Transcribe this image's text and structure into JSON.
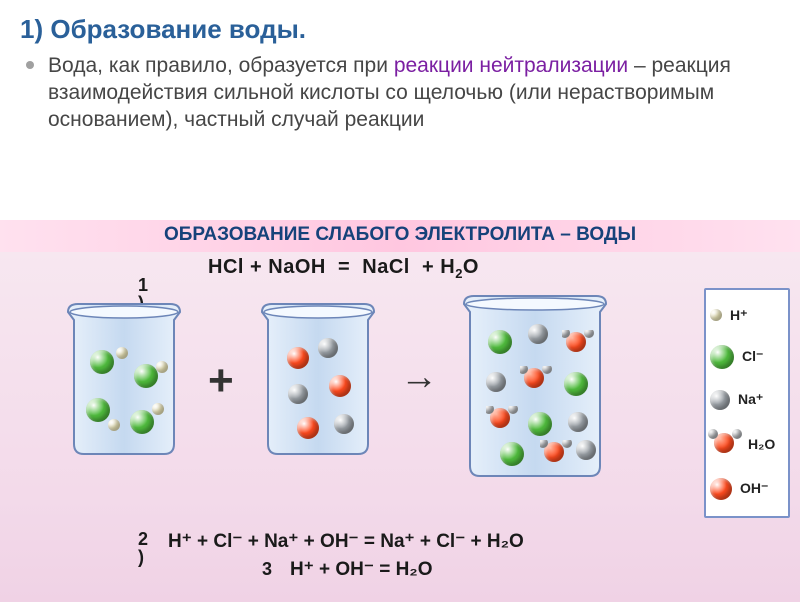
{
  "colors": {
    "title": "#2a6099",
    "body_text": "#464646",
    "highlight": "#7b1fa2",
    "bullet": "#a0a0a0",
    "band_title_bg": "#ffc7e0",
    "band_title_color": "#16427a",
    "band_body_bg": "#f3daea",
    "beaker_glass": "#c5d9f0",
    "beaker_stroke": "#6d86b8",
    "legend_border": "#7b92c9",
    "ion_H": "#f6f0c1",
    "ion_Cl": "#4fbb3d",
    "ion_Na": "#9aa0a6",
    "ion_OH": "#ff4b1f",
    "water_body": "#ff4b1f",
    "water_h": "#b9bcc0"
  },
  "title": "1) Образование воды.",
  "body": {
    "pre": "Вода, как правило, образуется при ",
    "hl": "реакции нейтрализации",
    "post": " – реакция взаимодействия сильной кислоты со щелочью (или нерастворимым основанием), частный случай реакции"
  },
  "band_title": "ОБРАЗОВАНИЕ СЛАБОГО ЭЛЕКТРОЛИТА – ВОДЫ",
  "labels": {
    "n1": "1",
    "n2": "2",
    "n3": "3",
    "paren": ")"
  },
  "eq1": {
    "lhs1": "HCl",
    "plus": "+",
    "lhs2": "NaOH",
    "eq": "=",
    "rhs1": "NaCl",
    "rhs2_a": "H",
    "rhs2_sub": "2",
    "rhs2_b": "O"
  },
  "eq2_text": "H⁺ + Cl⁻ + Na⁺ + OH⁻  =  Na⁺ + Cl⁻ + H₂O",
  "eq3_text": "H⁺ + OH⁻  =  H₂O",
  "legend": {
    "H": "H⁺",
    "Cl": "Cl⁻",
    "Na": "Na⁺",
    "H2O": "H₂O",
    "OH": "OH⁻"
  },
  "ball_sizes": {
    "H": 12,
    "Cl": 24,
    "Na": 20,
    "OH": 22,
    "water_o": 20,
    "water_h": 10
  }
}
